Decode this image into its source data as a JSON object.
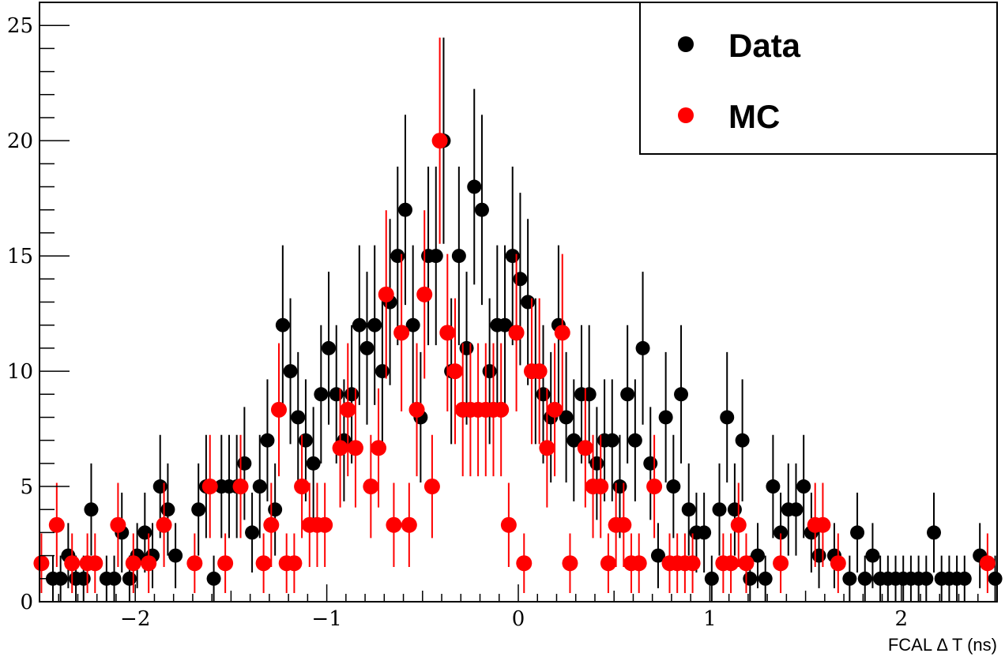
{
  "chart_data": {
    "type": "scatter",
    "title": "",
    "xlabel": "FCAL Δ T (ns)",
    "ylabel": "",
    "xlim": [
      -2.5,
      2.5
    ],
    "ylim": [
      0,
      26
    ],
    "x_ticks": [
      -2,
      -1,
      0,
      1,
      2
    ],
    "x_tick_labels": [
      "−2",
      "−1",
      "0",
      "1",
      "2"
    ],
    "y_ticks": [
      0,
      5,
      10,
      15,
      20,
      25
    ],
    "y_tick_labels": [
      "0",
      "5",
      "10",
      "15",
      "20",
      "25"
    ],
    "grid": false,
    "legend": {
      "placement": "top-right",
      "entries": [
        {
          "name": "Data",
          "color": "#000000"
        },
        {
          "name": "MC",
          "color": "#ff0000"
        }
      ]
    },
    "series": [
      {
        "name": "Data",
        "color": "#000000",
        "points": [
          [
            -2.43,
            1
          ],
          [
            -2.39,
            1
          ],
          [
            -2.35,
            2
          ],
          [
            -2.31,
            1
          ],
          [
            -2.27,
            1
          ],
          [
            -2.23,
            4
          ],
          [
            -2.15,
            1
          ],
          [
            -2.11,
            1
          ],
          [
            -2.07,
            3
          ],
          [
            -2.03,
            1
          ],
          [
            -1.99,
            2
          ],
          [
            -1.95,
            3
          ],
          [
            -1.91,
            2
          ],
          [
            -1.87,
            5
          ],
          [
            -1.83,
            4
          ],
          [
            -1.79,
            2
          ],
          [
            -1.67,
            4
          ],
          [
            -1.63,
            5
          ],
          [
            -1.59,
            1
          ],
          [
            -1.55,
            5
          ],
          [
            -1.51,
            5
          ],
          [
            -1.47,
            5
          ],
          [
            -1.43,
            6
          ],
          [
            -1.39,
            3
          ],
          [
            -1.35,
            5
          ],
          [
            -1.31,
            7
          ],
          [
            -1.27,
            4
          ],
          [
            -1.23,
            12
          ],
          [
            -1.19,
            10
          ],
          [
            -1.15,
            8
          ],
          [
            -1.11,
            7
          ],
          [
            -1.07,
            6
          ],
          [
            -1.03,
            9
          ],
          [
            -0.99,
            11
          ],
          [
            -0.95,
            9
          ],
          [
            -0.91,
            7
          ],
          [
            -0.87,
            9
          ],
          [
            -0.83,
            12
          ],
          [
            -0.79,
            11
          ],
          [
            -0.75,
            12
          ],
          [
            -0.71,
            10
          ],
          [
            -0.67,
            13
          ],
          [
            -0.63,
            15
          ],
          [
            -0.59,
            17
          ],
          [
            -0.55,
            12
          ],
          [
            -0.51,
            8
          ],
          [
            -0.47,
            15
          ],
          [
            -0.43,
            15
          ],
          [
            -0.39,
            20
          ],
          [
            -0.35,
            10
          ],
          [
            -0.31,
            15
          ],
          [
            -0.27,
            11
          ],
          [
            -0.23,
            18
          ],
          [
            -0.19,
            17
          ],
          [
            -0.15,
            10
          ],
          [
            -0.11,
            12
          ],
          [
            -0.07,
            12
          ],
          [
            -0.03,
            15
          ],
          [
            0.01,
            14
          ],
          [
            0.05,
            13
          ],
          [
            0.09,
            10
          ],
          [
            0.13,
            9
          ],
          [
            0.17,
            8
          ],
          [
            0.21,
            12
          ],
          [
            0.25,
            8
          ],
          [
            0.29,
            7
          ],
          [
            0.33,
            9
          ],
          [
            0.37,
            9
          ],
          [
            0.41,
            6
          ],
          [
            0.45,
            7
          ],
          [
            0.49,
            7
          ],
          [
            0.53,
            5
          ],
          [
            0.57,
            9
          ],
          [
            0.61,
            7
          ],
          [
            0.65,
            11
          ],
          [
            0.69,
            6
          ],
          [
            0.73,
            2
          ],
          [
            0.77,
            8
          ],
          [
            0.81,
            5
          ],
          [
            0.85,
            9
          ],
          [
            0.89,
            4
          ],
          [
            0.93,
            3
          ],
          [
            0.97,
            3
          ],
          [
            1.01,
            1
          ],
          [
            1.05,
            4
          ],
          [
            1.09,
            8
          ],
          [
            1.13,
            4
          ],
          [
            1.17,
            7
          ],
          [
            1.21,
            1
          ],
          [
            1.25,
            2
          ],
          [
            1.29,
            1
          ],
          [
            1.33,
            5
          ],
          [
            1.37,
            3
          ],
          [
            1.41,
            4
          ],
          [
            1.45,
            4
          ],
          [
            1.49,
            5
          ],
          [
            1.53,
            3
          ],
          [
            1.57,
            2
          ],
          [
            1.65,
            2
          ],
          [
            1.73,
            1
          ],
          [
            1.77,
            3
          ],
          [
            1.81,
            1
          ],
          [
            1.85,
            2
          ],
          [
            1.89,
            1
          ],
          [
            1.93,
            1
          ],
          [
            1.97,
            1
          ],
          [
            2.01,
            1
          ],
          [
            2.05,
            1
          ],
          [
            2.09,
            1
          ],
          [
            2.13,
            1
          ],
          [
            2.17,
            3
          ],
          [
            2.21,
            1
          ],
          [
            2.25,
            1
          ],
          [
            2.29,
            1
          ],
          [
            2.33,
            1
          ],
          [
            2.41,
            2
          ],
          [
            2.49,
            1
          ]
        ]
      },
      {
        "name": "MC",
        "color": "#ff0000",
        "points": [
          [
            -2.49,
            1.67
          ],
          [
            -2.41,
            3.33
          ],
          [
            -2.33,
            1.67
          ],
          [
            -2.25,
            1.67
          ],
          [
            -2.21,
            1.67
          ],
          [
            -2.09,
            3.33
          ],
          [
            -2.01,
            1.67
          ],
          [
            -1.93,
            1.67
          ],
          [
            -1.85,
            3.33
          ],
          [
            -1.69,
            1.67
          ],
          [
            -1.61,
            5
          ],
          [
            -1.53,
            1.67
          ],
          [
            -1.45,
            5
          ],
          [
            -1.33,
            1.67
          ],
          [
            -1.29,
            3.33
          ],
          [
            -1.25,
            8.33
          ],
          [
            -1.21,
            1.67
          ],
          [
            -1.17,
            1.67
          ],
          [
            -1.13,
            5
          ],
          [
            -1.09,
            3.33
          ],
          [
            -1.05,
            3.33
          ],
          [
            -1.01,
            3.33
          ],
          [
            -0.93,
            6.67
          ],
          [
            -0.89,
            8.33
          ],
          [
            -0.85,
            6.67
          ],
          [
            -0.77,
            5
          ],
          [
            -0.73,
            6.67
          ],
          [
            -0.69,
            13.33
          ],
          [
            -0.65,
            3.33
          ],
          [
            -0.61,
            11.67
          ],
          [
            -0.57,
            3.33
          ],
          [
            -0.53,
            8.33
          ],
          [
            -0.49,
            13.33
          ],
          [
            -0.45,
            5
          ],
          [
            -0.41,
            20
          ],
          [
            -0.37,
            11.67
          ],
          [
            -0.33,
            10
          ],
          [
            -0.29,
            8.33
          ],
          [
            -0.25,
            8.33
          ],
          [
            -0.21,
            8.33
          ],
          [
            -0.17,
            8.33
          ],
          [
            -0.13,
            8.33
          ],
          [
            -0.09,
            8.33
          ],
          [
            -0.05,
            3.33
          ],
          [
            -0.01,
            11.67
          ],
          [
            0.03,
            1.67
          ],
          [
            0.07,
            10
          ],
          [
            0.11,
            10
          ],
          [
            0.15,
            6.67
          ],
          [
            0.19,
            8.33
          ],
          [
            0.23,
            11.67
          ],
          [
            0.27,
            1.67
          ],
          [
            0.35,
            6.67
          ],
          [
            0.39,
            5
          ],
          [
            0.43,
            5
          ],
          [
            0.47,
            1.67
          ],
          [
            0.51,
            3.33
          ],
          [
            0.55,
            3.33
          ],
          [
            0.59,
            1.67
          ],
          [
            0.63,
            1.67
          ],
          [
            0.71,
            5
          ],
          [
            0.79,
            1.67
          ],
          [
            0.83,
            1.67
          ],
          [
            0.87,
            1.67
          ],
          [
            0.91,
            1.67
          ],
          [
            1.07,
            1.67
          ],
          [
            1.11,
            1.67
          ],
          [
            1.15,
            3.33
          ],
          [
            1.19,
            1.67
          ],
          [
            1.37,
            1.67
          ],
          [
            1.55,
            3.33
          ],
          [
            1.59,
            3.33
          ],
          [
            1.67,
            1.67
          ],
          [
            2.45,
            1.67
          ]
        ]
      }
    ]
  }
}
